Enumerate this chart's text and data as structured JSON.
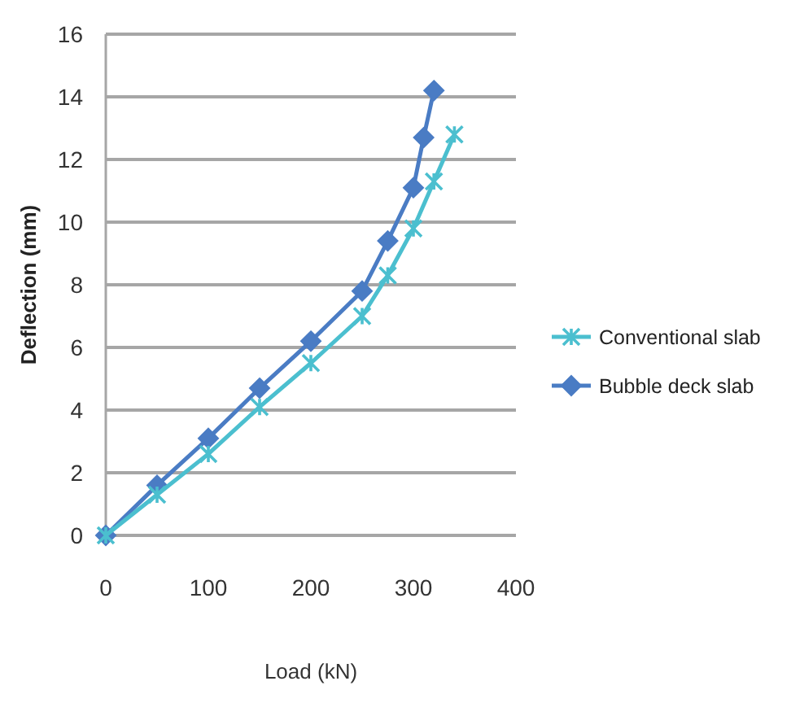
{
  "chart_data": {
    "type": "line",
    "xlabel": "Load (kN)",
    "ylabel": "Deflection (mm)",
    "xlim": [
      0,
      400
    ],
    "xticks": [
      0,
      100,
      200,
      300,
      400
    ],
    "ylim": [
      0,
      16
    ],
    "yticks": [
      0,
      2,
      4,
      6,
      8,
      10,
      12,
      14,
      16
    ],
    "grid": "y",
    "legend": "right",
    "series": [
      {
        "name": "Conventional slab",
        "color": "#4bbfcf",
        "marker": "cross",
        "x": [
          0,
          50,
          100,
          150,
          200,
          250,
          275,
          300,
          320,
          340
        ],
        "values": [
          0,
          1.3,
          2.6,
          4.1,
          5.5,
          7,
          8.3,
          9.8,
          11.3,
          12.8
        ]
      },
      {
        "name": "Bubble deck slab",
        "color": "#4a7cc4",
        "marker": "diamond",
        "x": [
          0,
          50,
          100,
          150,
          200,
          250,
          275,
          300,
          310,
          320
        ],
        "values": [
          0,
          1.6,
          3.1,
          4.7,
          6.2,
          7.8,
          9.4,
          11.1,
          12.7,
          14.2
        ]
      }
    ]
  }
}
